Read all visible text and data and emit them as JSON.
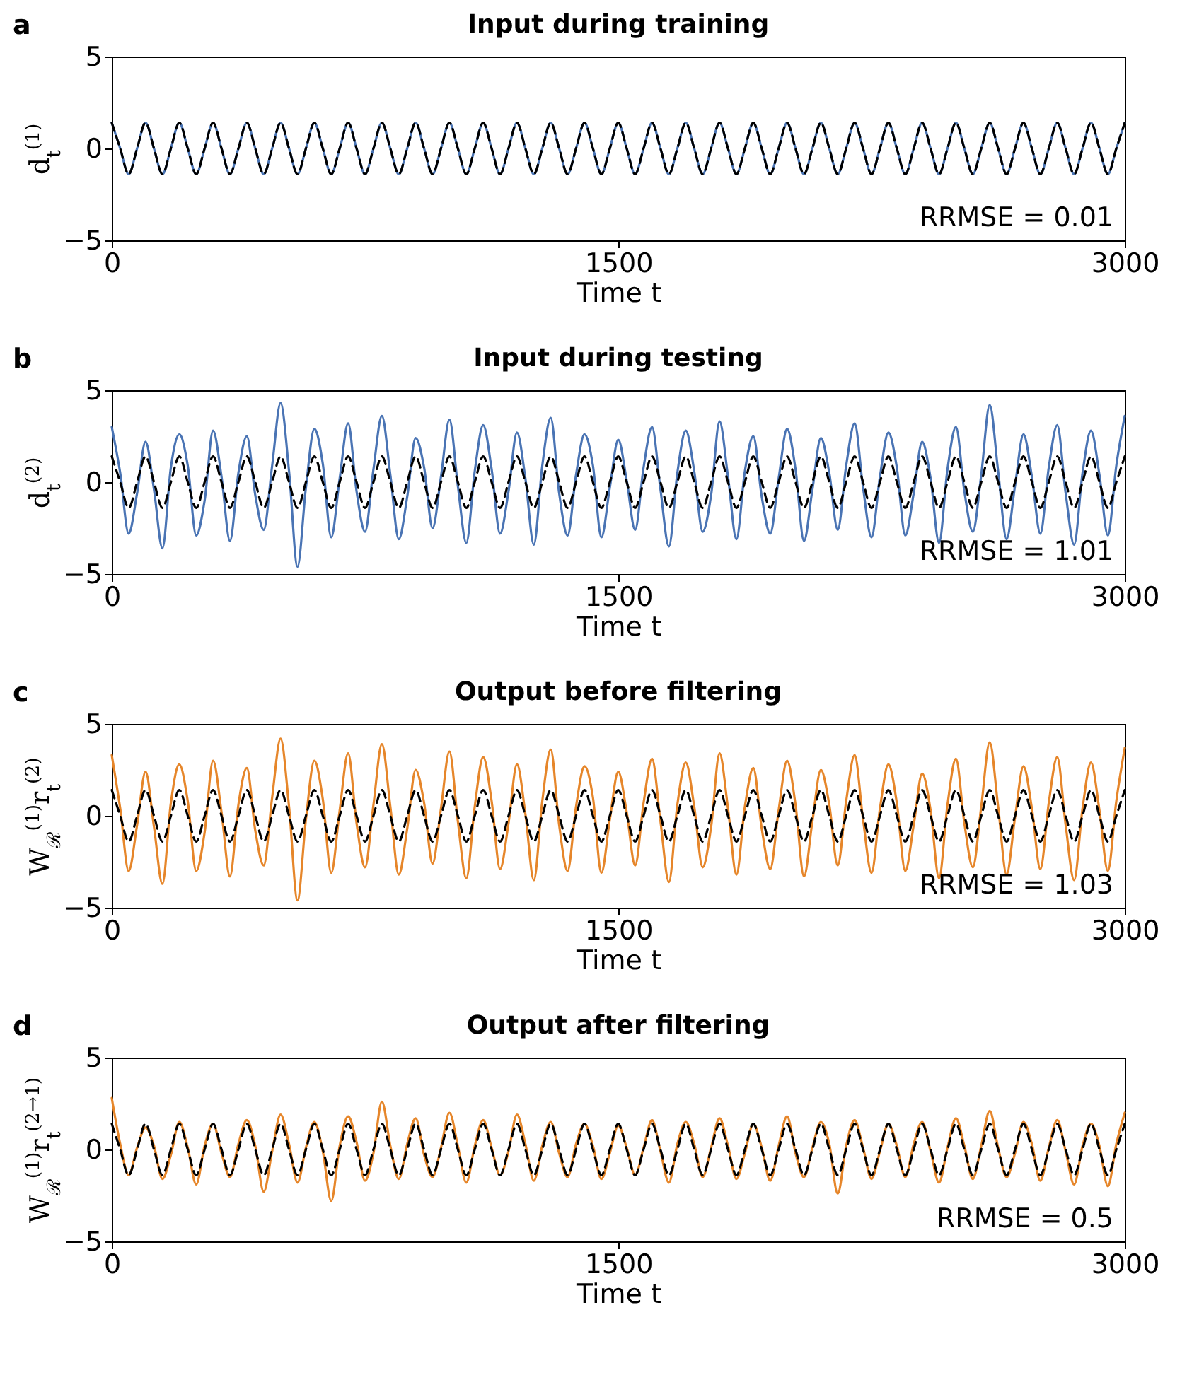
{
  "chart_data": [
    {
      "type": "line",
      "title": "Input during training",
      "xlabel": "Time t",
      "ylabel": "d$_{t}$$^{(1)}$",
      "annotations": [
        "a",
        "RRMSE = 0.01"
      ],
      "xlim": [
        0,
        3000
      ],
      "xticks": [
        0,
        1500,
        3000
      ],
      "ylim": [
        -5,
        5
      ],
      "yticks": [
        -5,
        0,
        5
      ],
      "x": [
        0,
        25,
        50,
        75,
        100,
        125,
        150,
        175,
        200,
        225,
        250,
        275,
        300,
        325,
        350,
        375,
        400,
        425,
        450,
        475,
        500,
        525,
        550,
        575,
        600,
        625,
        650,
        675,
        700,
        725,
        750,
        775,
        800,
        825,
        850,
        875,
        900,
        925,
        950,
        975,
        1000,
        1025,
        1050,
        1075,
        1100,
        1125,
        1150,
        1175,
        1200,
        1225,
        1250,
        1275,
        1300,
        1325,
        1350,
        1375,
        1400,
        1425,
        1450,
        1475,
        1500,
        1525,
        1550,
        1575,
        1600,
        1625,
        1650,
        1675,
        1700,
        1725,
        1750,
        1775,
        1800,
        1825,
        1850,
        1875,
        1900,
        1925,
        1950,
        1975,
        2000,
        2025,
        2050,
        2075,
        2100,
        2125,
        2150,
        2175,
        2200,
        2225,
        2250,
        2275,
        2300,
        2325,
        2350,
        2375,
        2400,
        2425,
        2450,
        2475,
        2500,
        2525,
        2550,
        2575,
        2600,
        2625,
        2650,
        2675,
        2700,
        2725,
        2750,
        2775,
        2800,
        2825,
        2850,
        2875,
        2900,
        2925,
        2950,
        2975,
        3000
      ],
      "series": [
        {
          "color": "#4a74b4",
          "line_style": "solid",
          "values": [
            1.4,
            0,
            -1.4,
            0,
            1.4,
            0,
            -1.4,
            0,
            1.4,
            0,
            -1.4,
            0,
            1.4,
            0,
            -1.4,
            0,
            1.4,
            0,
            -1.4,
            0,
            1.4,
            0,
            -1.4,
            0,
            1.4,
            0,
            -1.4,
            0,
            1.4,
            0,
            -1.4,
            0,
            1.4,
            0,
            -1.4,
            0,
            1.4,
            0,
            -1.4,
            0,
            1.4,
            0,
            -1.4,
            0,
            1.4,
            0,
            -1.4,
            0,
            1.4,
            0,
            -1.4,
            0,
            1.4,
            0,
            -1.4,
            0,
            1.4,
            0,
            -1.4,
            0,
            1.4,
            0,
            -1.4,
            0,
            1.4,
            0,
            -1.4,
            0,
            1.4,
            0,
            -1.4,
            0,
            1.4,
            0,
            -1.4,
            0,
            1.4,
            0,
            -1.4,
            0,
            1.4,
            0,
            -1.4,
            0,
            1.4,
            0,
            -1.4,
            0,
            1.4,
            0,
            -1.4,
            0,
            1.4,
            0,
            -1.4,
            0,
            1.4,
            0,
            -1.4,
            0,
            1.4,
            0,
            -1.4,
            0,
            1.4,
            0,
            -1.4,
            0,
            1.4,
            0,
            -1.4,
            0,
            1.4,
            0,
            -1.4,
            0,
            1.4,
            0,
            -1.4,
            0,
            1.4
          ]
        },
        {
          "color": "#000000",
          "line_style": "dashed",
          "values": [
            1.4,
            0,
            -1.4,
            0,
            1.4,
            0,
            -1.4,
            0,
            1.4,
            0,
            -1.4,
            0,
            1.4,
            0,
            -1.4,
            0,
            1.4,
            0,
            -1.4,
            0,
            1.4,
            0,
            -1.4,
            0,
            1.4,
            0,
            -1.4,
            0,
            1.4,
            0,
            -1.4,
            0,
            1.4,
            0,
            -1.4,
            0,
            1.4,
            0,
            -1.4,
            0,
            1.4,
            0,
            -1.4,
            0,
            1.4,
            0,
            -1.4,
            0,
            1.4,
            0,
            -1.4,
            0,
            1.4,
            0,
            -1.4,
            0,
            1.4,
            0,
            -1.4,
            0,
            1.4,
            0,
            -1.4,
            0,
            1.4,
            0,
            -1.4,
            0,
            1.4,
            0,
            -1.4,
            0,
            1.4,
            0,
            -1.4,
            0,
            1.4,
            0,
            -1.4,
            0,
            1.4,
            0,
            -1.4,
            0,
            1.4,
            0,
            -1.4,
            0,
            1.4,
            0,
            -1.4,
            0,
            1.4,
            0,
            -1.4,
            0,
            1.4,
            0,
            -1.4,
            0,
            1.4,
            0,
            -1.4,
            0,
            1.4,
            0,
            -1.4,
            0,
            1.4,
            0,
            -1.4,
            0,
            1.4,
            0,
            -1.4,
            0,
            1.4,
            0,
            -1.4,
            0,
            1.4
          ]
        }
      ]
    },
    {
      "type": "line",
      "title": "Input during testing",
      "xlabel": "Time t",
      "ylabel": "d$_{t}$$^{(2)}$",
      "annotations": [
        "b",
        "RRMSE = 1.01"
      ],
      "xlim": [
        0,
        3000
      ],
      "xticks": [
        0,
        1500,
        3000
      ],
      "ylim": [
        -5,
        5
      ],
      "yticks": [
        -5,
        0,
        5
      ],
      "x": [
        0,
        25,
        50,
        75,
        100,
        125,
        150,
        175,
        200,
        225,
        250,
        275,
        300,
        325,
        350,
        375,
        400,
        425,
        450,
        475,
        500,
        525,
        550,
        575,
        600,
        625,
        650,
        675,
        700,
        725,
        750,
        775,
        800,
        825,
        850,
        875,
        900,
        925,
        950,
        975,
        1000,
        1025,
        1050,
        1075,
        1100,
        1125,
        1150,
        1175,
        1200,
        1225,
        1250,
        1275,
        1300,
        1325,
        1350,
        1375,
        1400,
        1425,
        1450,
        1475,
        1500,
        1525,
        1550,
        1575,
        1600,
        1625,
        1650,
        1675,
        1700,
        1725,
        1750,
        1775,
        1800,
        1825,
        1850,
        1875,
        1900,
        1925,
        1950,
        1975,
        2000,
        2025,
        2050,
        2075,
        2100,
        2125,
        2150,
        2175,
        2200,
        2225,
        2250,
        2275,
        2300,
        2325,
        2350,
        2375,
        2400,
        2425,
        2450,
        2475,
        2500,
        2525,
        2550,
        2575,
        2600,
        2625,
        2650,
        2675,
        2700,
        2725,
        2750,
        2775,
        2800,
        2825,
        2850,
        2875,
        2900,
        2925,
        2950,
        2975,
        3000
      ],
      "series": [
        {
          "color": "#4a74b4",
          "line_style": "solid",
          "values": [
            3.0,
            0.5,
            -2.8,
            -0.6,
            2.2,
            -0.4,
            -3.6,
            0.8,
            2.6,
            0.9,
            -2.9,
            -1.0,
            2.8,
            0.3,
            -3.2,
            0.5,
            2.5,
            -0.7,
            -2.6,
            0.9,
            4.3,
            0.6,
            -4.6,
            -0.3,
            2.9,
            1.0,
            -3.0,
            0.2,
            3.2,
            -0.5,
            -2.7,
            0.7,
            3.6,
            0.4,
            -3.1,
            -0.8,
            2.4,
            0.8,
            -2.5,
            0.3,
            3.4,
            -0.2,
            -3.3,
            0.6,
            3.1,
            0.7,
            -2.8,
            -0.5,
            2.7,
            0.2,
            -3.4,
            0.9,
            3.5,
            -0.6,
            -2.9,
            0.4,
            2.6,
            0.9,
            -3.0,
            -0.3,
            2.3,
            0.1,
            -2.6,
            0.8,
            3.0,
            -0.4,
            -3.5,
            0.5,
            2.8,
            0.6,
            -2.7,
            -0.7,
            3.3,
            0.3,
            -3.1,
            0.6,
            2.5,
            -0.8,
            -2.8,
            0.2,
            2.9,
            0.7,
            -3.2,
            -0.4,
            2.4,
            0.5,
            -2.6,
            0.9,
            3.2,
            -0.3,
            -3.0,
            0.3,
            2.7,
            0.8,
            -2.9,
            -0.6,
            2.2,
            0.2,
            -3.3,
            0.7,
            3.0,
            -0.5,
            -2.7,
            0.4,
            4.2,
            0.6,
            -3.1,
            -0.2,
            2.6,
            0.3,
            -2.8,
            0.8,
            3.1,
            -0.6,
            -3.4,
            0.5,
            2.8,
            0.4,
            -2.9,
            0.9,
            3.6
          ]
        },
        {
          "color": "#000000",
          "line_style": "dashed",
          "values": [
            1.4,
            0,
            -1.4,
            0,
            1.4,
            0,
            -1.4,
            0,
            1.4,
            0,
            -1.4,
            0,
            1.4,
            0,
            -1.4,
            0,
            1.4,
            0,
            -1.4,
            0,
            1.4,
            0,
            -1.4,
            0,
            1.4,
            0,
            -1.4,
            0,
            1.4,
            0,
            -1.4,
            0,
            1.4,
            0,
            -1.4,
            0,
            1.4,
            0,
            -1.4,
            0,
            1.4,
            0,
            -1.4,
            0,
            1.4,
            0,
            -1.4,
            0,
            1.4,
            0,
            -1.4,
            0,
            1.4,
            0,
            -1.4,
            0,
            1.4,
            0,
            -1.4,
            0,
            1.4,
            0,
            -1.4,
            0,
            1.4,
            0,
            -1.4,
            0,
            1.4,
            0,
            -1.4,
            0,
            1.4,
            0,
            -1.4,
            0,
            1.4,
            0,
            -1.4,
            0,
            1.4,
            0,
            -1.4,
            0,
            1.4,
            0,
            -1.4,
            0,
            1.4,
            0,
            -1.4,
            0,
            1.4,
            0,
            -1.4,
            0,
            1.4,
            0,
            -1.4,
            0,
            1.4,
            0,
            -1.4,
            0,
            1.4,
            0,
            -1.4,
            0,
            1.4,
            0,
            -1.4,
            0,
            1.4,
            0,
            -1.4,
            0,
            1.4,
            0,
            -1.4,
            0,
            1.4
          ]
        }
      ]
    },
    {
      "type": "line",
      "title": "Output before filtering",
      "xlabel": "Time t",
      "ylabel": "W$_{ℛ}$$^{(1)}$r$_{t}$$^{(2)}$",
      "annotations": [
        "c",
        "RRMSE = 1.03"
      ],
      "xlim": [
        0,
        3000
      ],
      "xticks": [
        0,
        1500,
        3000
      ],
      "ylim": [
        -5,
        5
      ],
      "yticks": [
        -5,
        0,
        5
      ],
      "x": [
        0,
        25,
        50,
        75,
        100,
        125,
        150,
        175,
        200,
        225,
        250,
        275,
        300,
        325,
        350,
        375,
        400,
        425,
        450,
        475,
        500,
        525,
        550,
        575,
        600,
        625,
        650,
        675,
        700,
        725,
        750,
        775,
        800,
        825,
        850,
        875,
        900,
        925,
        950,
        975,
        1000,
        1025,
        1050,
        1075,
        1100,
        1125,
        1150,
        1175,
        1200,
        1225,
        1250,
        1275,
        1300,
        1325,
        1350,
        1375,
        1400,
        1425,
        1450,
        1475,
        1500,
        1525,
        1550,
        1575,
        1600,
        1625,
        1650,
        1675,
        1700,
        1725,
        1750,
        1775,
        1800,
        1825,
        1850,
        1875,
        1900,
        1925,
        1950,
        1975,
        2000,
        2025,
        2050,
        2075,
        2100,
        2125,
        2150,
        2175,
        2200,
        2225,
        2250,
        2275,
        2300,
        2325,
        2350,
        2375,
        2400,
        2425,
        2450,
        2475,
        2500,
        2525,
        2550,
        2575,
        2600,
        2625,
        2650,
        2675,
        2700,
        2725,
        2750,
        2775,
        2800,
        2825,
        2850,
        2875,
        2900,
        2925,
        2950,
        2975,
        3000
      ],
      "series": [
        {
          "color": "#e6862a",
          "line_style": "solid",
          "values": [
            3.3,
            0.4,
            -3.0,
            -0.5,
            2.4,
            -0.6,
            -3.7,
            0.7,
            2.8,
            0.8,
            -3.0,
            -0.9,
            3.0,
            0.2,
            -3.3,
            0.6,
            2.6,
            -0.8,
            -2.7,
            1.0,
            4.2,
            0.5,
            -4.6,
            -0.2,
            3.0,
            0.9,
            -3.1,
            0.3,
            3.4,
            -0.4,
            -2.8,
            0.6,
            3.9,
            0.5,
            -3.2,
            -0.7,
            2.5,
            0.7,
            -2.6,
            0.4,
            3.5,
            -0.3,
            -3.4,
            0.5,
            3.2,
            0.8,
            -2.9,
            -0.4,
            2.8,
            0.1,
            -3.5,
            0.8,
            3.6,
            -0.5,
            -3.0,
            0.5,
            2.7,
            1.0,
            -3.1,
            -0.2,
            2.4,
            0.2,
            -2.7,
            0.7,
            3.1,
            -0.3,
            -3.6,
            0.6,
            2.9,
            0.5,
            -2.8,
            -0.6,
            3.4,
            0.4,
            -3.2,
            0.5,
            2.6,
            -0.7,
            -2.9,
            0.3,
            3.0,
            0.6,
            -3.3,
            -0.3,
            2.5,
            0.6,
            -2.7,
            0.8,
            3.3,
            -0.2,
            -3.1,
            0.4,
            2.8,
            0.7,
            -3.0,
            -0.5,
            2.3,
            0.3,
            -3.4,
            0.6,
            3.1,
            -0.4,
            -2.8,
            0.5,
            4.0,
            0.5,
            -3.2,
            -0.1,
            2.7,
            0.4,
            -2.9,
            0.7,
            3.2,
            -0.5,
            -3.5,
            0.4,
            2.9,
            0.3,
            -3.0,
            0.8,
            3.7
          ]
        },
        {
          "color": "#000000",
          "line_style": "dashed",
          "values": [
            1.4,
            0,
            -1.4,
            0,
            1.4,
            0,
            -1.4,
            0,
            1.4,
            0,
            -1.4,
            0,
            1.4,
            0,
            -1.4,
            0,
            1.4,
            0,
            -1.4,
            0,
            1.4,
            0,
            -1.4,
            0,
            1.4,
            0,
            -1.4,
            0,
            1.4,
            0,
            -1.4,
            0,
            1.4,
            0,
            -1.4,
            0,
            1.4,
            0,
            -1.4,
            0,
            1.4,
            0,
            -1.4,
            0,
            1.4,
            0,
            -1.4,
            0,
            1.4,
            0,
            -1.4,
            0,
            1.4,
            0,
            -1.4,
            0,
            1.4,
            0,
            -1.4,
            0,
            1.4,
            0,
            -1.4,
            0,
            1.4,
            0,
            -1.4,
            0,
            1.4,
            0,
            -1.4,
            0,
            1.4,
            0,
            -1.4,
            0,
            1.4,
            0,
            -1.4,
            0,
            1.4,
            0,
            -1.4,
            0,
            1.4,
            0,
            -1.4,
            0,
            1.4,
            0,
            -1.4,
            0,
            1.4,
            0,
            -1.4,
            0,
            1.4,
            0,
            -1.4,
            0,
            1.4,
            0,
            -1.4,
            0,
            1.4,
            0,
            -1.4,
            0,
            1.4,
            0,
            -1.4,
            0,
            1.4,
            0,
            -1.4,
            0,
            1.4,
            0,
            -1.4,
            0,
            1.4
          ]
        }
      ]
    },
    {
      "type": "line",
      "title": "Output after filtering",
      "xlabel": "Time t",
      "ylabel": "W$_{ℛ}$$^{(1)}$r$_{t}$$^{(2→1)}$",
      "annotations": [
        "d",
        "RRMSE = 0.5"
      ],
      "xlim": [
        0,
        3000
      ],
      "xticks": [
        0,
        1500,
        3000
      ],
      "ylim": [
        -5,
        5
      ],
      "yticks": [
        -5,
        0,
        5
      ],
      "x": [
        0,
        25,
        50,
        75,
        100,
        125,
        150,
        175,
        200,
        225,
        250,
        275,
        300,
        325,
        350,
        375,
        400,
        425,
        450,
        475,
        500,
        525,
        550,
        575,
        600,
        625,
        650,
        675,
        700,
        725,
        750,
        775,
        800,
        825,
        850,
        875,
        900,
        925,
        950,
        975,
        1000,
        1025,
        1050,
        1075,
        1100,
        1125,
        1150,
        1175,
        1200,
        1225,
        1250,
        1275,
        1300,
        1325,
        1350,
        1375,
        1400,
        1425,
        1450,
        1475,
        1500,
        1525,
        1550,
        1575,
        1600,
        1625,
        1650,
        1675,
        1700,
        1725,
        1750,
        1775,
        1800,
        1825,
        1850,
        1875,
        1900,
        1925,
        1950,
        1975,
        2000,
        2025,
        2050,
        2075,
        2100,
        2125,
        2150,
        2175,
        2200,
        2225,
        2250,
        2275,
        2300,
        2325,
        2350,
        2375,
        2400,
        2425,
        2450,
        2475,
        2500,
        2525,
        2550,
        2575,
        2600,
        2625,
        2650,
        2675,
        2700,
        2725,
        2750,
        2775,
        2800,
        2825,
        2850,
        2875,
        2900,
        2925,
        2950,
        2975,
        3000
      ],
      "series": [
        {
          "color": "#e6862a",
          "line_style": "solid",
          "values": [
            2.8,
            0.3,
            -1.4,
            0.1,
            1.2,
            0.2,
            -1.6,
            -0.3,
            1.5,
            0.1,
            -1.9,
            0.2,
            1.4,
            -0.2,
            -1.5,
            0.3,
            1.6,
            0.2,
            -2.3,
            -0.1,
            1.9,
            0.3,
            -1.8,
            0.1,
            1.5,
            -0.1,
            -2.8,
            0.2,
            1.8,
            0.4,
            -1.7,
            -0.2,
            2.6,
            0.2,
            -1.6,
            0.3,
            1.7,
            -0.3,
            -1.5,
            0.1,
            2.0,
            0.2,
            -1.8,
            0.2,
            1.6,
            0.1,
            -1.4,
            -0.1,
            1.9,
            0.3,
            -1.7,
            0.2,
            1.5,
            -0.2,
            -1.5,
            0.3,
            1.4,
            0.2,
            -1.6,
            -0.2,
            1.3,
            0.1,
            -1.4,
            0.1,
            1.6,
            -0.1,
            -1.8,
            0.3,
            1.5,
            0.3,
            -1.5,
            0.1,
            1.7,
            0.2,
            -1.6,
            -0.2,
            1.4,
            0.1,
            -1.7,
            0.2,
            1.8,
            -0.2,
            -1.5,
            0.1,
            1.5,
            0.3,
            -2.4,
            0.2,
            1.6,
            0.1,
            -1.6,
            -0.1,
            1.4,
            0.2,
            -1.5,
            0.3,
            1.5,
            -0.1,
            -1.8,
            0.1,
            1.7,
            0.2,
            -1.6,
            0.2,
            2.1,
            0.1,
            -1.5,
            -0.2,
            1.5,
            0.3,
            -1.7,
            0.1,
            1.6,
            -0.1,
            -1.9,
            0.2,
            1.4,
            0.2,
            -2.0,
            0.3,
            2.0
          ]
        },
        {
          "color": "#000000",
          "line_style": "dashed",
          "values": [
            1.4,
            0,
            -1.4,
            0,
            1.4,
            0,
            -1.4,
            0,
            1.4,
            0,
            -1.4,
            0,
            1.4,
            0,
            -1.4,
            0,
            1.4,
            0,
            -1.4,
            0,
            1.4,
            0,
            -1.4,
            0,
            1.4,
            0,
            -1.4,
            0,
            1.4,
            0,
            -1.4,
            0,
            1.4,
            0,
            -1.4,
            0,
            1.4,
            0,
            -1.4,
            0,
            1.4,
            0,
            -1.4,
            0,
            1.4,
            0,
            -1.4,
            0,
            1.4,
            0,
            -1.4,
            0,
            1.4,
            0,
            -1.4,
            0,
            1.4,
            0,
            -1.4,
            0,
            1.4,
            0,
            -1.4,
            0,
            1.4,
            0,
            -1.4,
            0,
            1.4,
            0,
            -1.4,
            0,
            1.4,
            0,
            -1.4,
            0,
            1.4,
            0,
            -1.4,
            0,
            1.4,
            0,
            -1.4,
            0,
            1.4,
            0,
            -1.4,
            0,
            1.4,
            0,
            -1.4,
            0,
            1.4,
            0,
            -1.4,
            0,
            1.4,
            0,
            -1.4,
            0,
            1.4,
            0,
            -1.4,
            0,
            1.4,
            0,
            -1.4,
            0,
            1.4,
            0,
            -1.4,
            0,
            1.4,
            0,
            -1.4,
            0,
            1.4,
            0,
            -1.4,
            0,
            1.4
          ]
        }
      ]
    }
  ]
}
